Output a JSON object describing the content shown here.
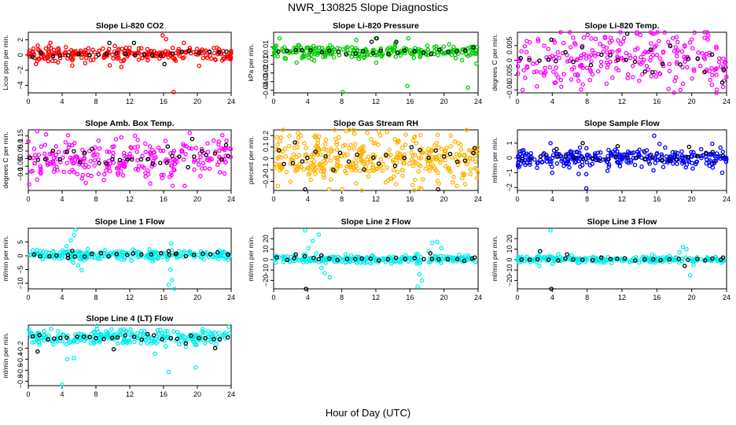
{
  "figure": {
    "title": "NWR_130825  Slope Diagnostics",
    "xlabel": "Hour of Day (UTC)"
  },
  "chart_data": [
    {
      "type": "scatter",
      "title": "Slope Li-820 CO2",
      "ylabel": "Licor ppm per min.",
      "xlim": [
        0,
        24
      ],
      "ylim": [
        -5,
        3
      ],
      "xticks": [
        0,
        4,
        8,
        12,
        16,
        20,
        24
      ],
      "yticks": [
        -4,
        -2,
        0,
        2
      ],
      "color": "#ff0000",
      "baseline": 0.15,
      "spread": 0.45,
      "density": 250,
      "label_density": 22,
      "outliers": [
        [
          15.9,
          2.6
        ],
        [
          16.3,
          2.1
        ],
        [
          17.2,
          -4.9
        ],
        [
          11.0,
          -1.6
        ],
        [
          5.2,
          -1.4
        ],
        [
          18.4,
          1.6
        ],
        [
          0.9,
          -1.2
        ]
      ],
      "label_outliers": [
        [
          12.5,
          1.6
        ],
        [
          9.6,
          1.6
        ],
        [
          16.1,
          -1.2
        ]
      ]
    },
    {
      "type": "scatter",
      "title": "Slope Li-820 Pressure",
      "ylabel": "kPa per min.",
      "xlim": [
        0,
        24
      ],
      "ylim": [
        -0.043,
        0.027
      ],
      "xticks": [
        0,
        4,
        8,
        12,
        16,
        20,
        24
      ],
      "yticks": [
        -0.04,
        -0.03,
        -0.02,
        -0.01,
        0,
        0.01
      ],
      "color": "#00cc00",
      "baseline": 0.005,
      "spread": 0.004,
      "density": 250,
      "label_density": 24,
      "outliers": [
        [
          0.7,
          0.02
        ],
        [
          8.1,
          -0.042
        ],
        [
          12.0,
          0.02
        ],
        [
          15.8,
          0.02
        ],
        [
          15.7,
          -0.035
        ],
        [
          22.8,
          -0.037
        ],
        [
          2.7,
          -0.008
        ],
        [
          9.7,
          0.018
        ],
        [
          20.6,
          0.013
        ]
      ],
      "label_outliers": [
        [
          12.1,
          0.02
        ],
        [
          11.5,
          0.016
        ],
        [
          14.4,
          0.016
        ]
      ]
    },
    {
      "type": "scatter",
      "title": "Slope Li-820 Temp.",
      "ylabel": "degrees C per min.",
      "xlim": [
        0,
        24
      ],
      "ylim": [
        -0.011,
        0.0095
      ],
      "xticks": [
        0,
        4,
        8,
        12,
        16,
        20,
        24
      ],
      "yticks": [
        -0.01,
        -0.005,
        0,
        0.005
      ],
      "color": "#ff00ff",
      "baseline": 0.0005,
      "spread": 0.005,
      "density": 260,
      "label_density": 24,
      "outliers": [
        [
          15.7,
          0.009
        ],
        [
          21.9,
          0.0085
        ],
        [
          0.6,
          -0.01
        ],
        [
          18.7,
          -0.01
        ],
        [
          23.6,
          -0.009
        ]
      ],
      "label_outliers": [
        [
          12.6,
          0.009
        ],
        [
          3.9,
          0.007
        ],
        [
          15.5,
          -0.004
        ],
        [
          23.5,
          -0.0075
        ]
      ]
    },
    {
      "type": "scatter",
      "title": "Slope Amb. Box Temp.",
      "ylabel": "degrees C per min.",
      "xlim": [
        0,
        24
      ],
      "ylim": [
        -0.21,
        0.19
      ],
      "xticks": [
        0,
        4,
        8,
        12,
        16,
        20,
        24
      ],
      "yticks": [
        -0.1,
        -0.05,
        0,
        0.05,
        0.1,
        0.15
      ],
      "color": "#ff00ff",
      "baseline": 0.0,
      "spread": 0.07,
      "density": 260,
      "label_density": 30,
      "outliers": [
        [
          18.5,
          -0.18
        ],
        [
          19.1,
          0.17
        ],
        [
          2.1,
          0.16
        ],
        [
          6.8,
          -0.16
        ],
        [
          11.0,
          0.14
        ]
      ],
      "label_outliers": [
        [
          19.4,
          0.13
        ],
        [
          16.5,
          0.08
        ],
        [
          23.4,
          0.09
        ]
      ]
    },
    {
      "type": "scatter",
      "title": "Slope Gas Stream RH",
      "ylabel": "percent per min.",
      "xlim": [
        0,
        24
      ],
      "ylim": [
        -0.28,
        0.25
      ],
      "xticks": [
        0,
        4,
        8,
        12,
        16,
        20,
        24
      ],
      "yticks": [
        -0.2,
        -0.1,
        0,
        0.1,
        0.2
      ],
      "color": "#ffb300",
      "baseline": 0.0,
      "spread": 0.1,
      "density": 380,
      "label_density": 26,
      "outliers": [
        [
          0.5,
          -0.24
        ],
        [
          8.5,
          0.24
        ],
        [
          13.3,
          0.23
        ],
        [
          17.1,
          -0.26
        ],
        [
          9.7,
          -0.22
        ],
        [
          21.5,
          -0.24
        ],
        [
          3.2,
          0.2
        ],
        [
          20.8,
          0.2
        ]
      ],
      "label_outliers": [
        [
          2.5,
          0.14
        ],
        [
          3.7,
          -0.27
        ],
        [
          19.3,
          -0.27
        ],
        [
          23.6,
          0.09
        ]
      ]
    },
    {
      "type": "scatter",
      "title": "Slope Sample Flow",
      "ylabel": "ml/min per min.",
      "xlim": [
        0,
        24
      ],
      "ylim": [
        -2.2,
        1.9
      ],
      "xticks": [
        0,
        4,
        8,
        12,
        16,
        20,
        24
      ],
      "yticks": [
        -2,
        -1,
        0,
        1
      ],
      "color": "#0000ff",
      "baseline": 0.0,
      "spread": 0.3,
      "density": 300,
      "label_density": 24,
      "outliers": [
        [
          15.7,
          1.5
        ],
        [
          7.9,
          -2.05
        ],
        [
          7.9,
          -1.1
        ],
        [
          4.0,
          -1.0
        ],
        [
          16.3,
          0.95
        ],
        [
          23.5,
          -1.0
        ],
        [
          0.2,
          -0.6
        ],
        [
          3.8,
          1.0
        ]
      ],
      "label_outliers": [
        [
          7.5,
          1.0
        ],
        [
          11.5,
          0.8
        ],
        [
          19.7,
          0.75
        ],
        [
          4.5,
          0.6
        ],
        [
          22.4,
          0.4
        ]
      ]
    },
    {
      "type": "scatter",
      "title": "Slope Line 1 Flow",
      "ylabel": "ml/min per min.",
      "xlim": [
        0,
        24
      ],
      "ylim": [
        -12,
        10
      ],
      "xticks": [
        0,
        4,
        8,
        12,
        16,
        20,
        24
      ],
      "yticks": [
        -10,
        -5,
        0,
        5
      ],
      "color": "#00eeee",
      "baseline": 0.3,
      "spread": 0.9,
      "density": 250,
      "label_density": 24,
      "outliers": [
        [
          5.6,
          9.5
        ],
        [
          5.4,
          7.5
        ],
        [
          5.0,
          5.6
        ],
        [
          4.5,
          3.5
        ],
        [
          5.3,
          -2.5
        ],
        [
          5.9,
          -3.5
        ],
        [
          6.3,
          -5.2
        ],
        [
          17.0,
          -8.8
        ],
        [
          16.6,
          -10.5
        ],
        [
          17.3,
          -12.0
        ],
        [
          16.8,
          -5.0
        ],
        [
          16.9,
          4.5
        ],
        [
          12.2,
          -1.8
        ],
        [
          22.5,
          -1.2
        ]
      ],
      "label_outliers": [
        [
          5.2,
          1.8
        ],
        [
          4.7,
          -0.8
        ],
        [
          16.6,
          1.7
        ],
        [
          17.5,
          0.8
        ],
        [
          23.6,
          0.4
        ]
      ]
    },
    {
      "type": "scatter",
      "title": "Slope Line 2 Flow",
      "ylabel": "ml/min per min.",
      "xlim": [
        0,
        24
      ],
      "ylim": [
        -28,
        30
      ],
      "xticks": [
        0,
        4,
        8,
        12,
        16,
        20,
        24
      ],
      "yticks": [
        -20,
        -10,
        0,
        10,
        20
      ],
      "color": "#00eeee",
      "baseline": 0.5,
      "spread": 2.0,
      "density": 250,
      "label_density": 24,
      "outliers": [
        [
          3.7,
          28
        ],
        [
          5.3,
          24
        ],
        [
          4.6,
          18
        ],
        [
          4.1,
          11
        ],
        [
          5.0,
          6
        ],
        [
          5.6,
          -8
        ],
        [
          6.0,
          -13
        ],
        [
          6.6,
          -17
        ],
        [
          17.4,
          -20
        ],
        [
          17.1,
          -14
        ],
        [
          16.9,
          -26
        ],
        [
          18.6,
          16
        ],
        [
          19.2,
          17
        ],
        [
          18.2,
          8
        ],
        [
          19.7,
          11
        ]
      ],
      "label_outliers": [
        [
          3.8,
          -28
        ],
        [
          2.6,
          5
        ],
        [
          5.6,
          4
        ],
        [
          18.4,
          6
        ],
        [
          23.6,
          2
        ]
      ]
    },
    {
      "type": "scatter",
      "title": "Slope Line 3 Flow",
      "ylabel": "ml/min per min.",
      "xlim": [
        0,
        24
      ],
      "ylim": [
        -28,
        30
      ],
      "xticks": [
        0,
        4,
        8,
        12,
        16,
        20,
        24
      ],
      "yticks": [
        -20,
        -10,
        0,
        10,
        20
      ],
      "color": "#00eeee",
      "baseline": 0.2,
      "spread": 1.5,
      "density": 250,
      "label_density": 24,
      "outliers": [
        [
          3.8,
          28
        ],
        [
          4.7,
          5
        ],
        [
          2.5,
          -6
        ],
        [
          19.0,
          12
        ],
        [
          19.4,
          10
        ],
        [
          19.8,
          -15
        ],
        [
          18.6,
          7
        ],
        [
          20.2,
          -5
        ]
      ],
      "label_outliers": [
        [
          3.9,
          -28
        ],
        [
          2.6,
          8
        ],
        [
          5.7,
          5
        ],
        [
          19.2,
          -6
        ],
        [
          23.6,
          2
        ]
      ]
    },
    {
      "type": "scatter",
      "title": "Slope Line 4 (LT) Flow",
      "ylabel": "ml/min per min.",
      "xlim": [
        0,
        24
      ],
      "ylim": [
        -0.88,
        0.22
      ],
      "xticks": [
        0,
        4,
        8,
        12,
        16,
        20,
        24
      ],
      "yticks": [
        -0.8,
        -0.6,
        -0.4,
        -0.2
      ],
      "color": "#00eeee",
      "baseline": 0.0,
      "spread": 0.07,
      "density": 260,
      "label_density": 28,
      "outliers": [
        [
          4.0,
          -0.86
        ],
        [
          16.6,
          -0.63
        ],
        [
          19.8,
          -0.55
        ],
        [
          4.6,
          -0.4
        ],
        [
          5.4,
          -0.38
        ],
        [
          2.7,
          0.15
        ],
        [
          12.1,
          0.14
        ],
        [
          15.0,
          -0.3
        ]
      ],
      "label_outliers": [
        [
          1.1,
          -0.26
        ],
        [
          10.1,
          -0.22
        ],
        [
          22.1,
          -0.2
        ]
      ]
    }
  ]
}
